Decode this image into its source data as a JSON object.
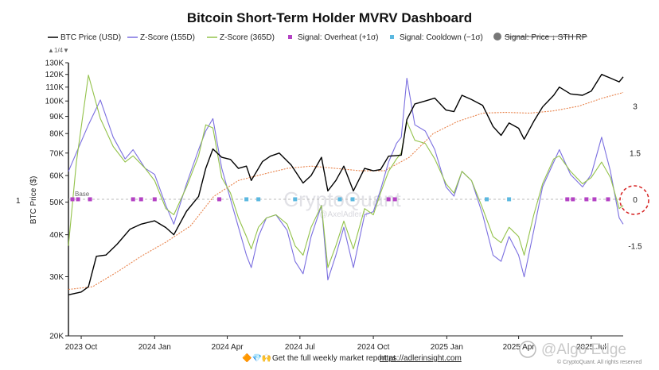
{
  "chart_data": {
    "type": "line",
    "title": "Bitcoin Short-Term Holder MVRV Dashboard",
    "ylabel": "BTC Price ($)",
    "left_axis_side_label": "1",
    "y_scale": "log",
    "ylim": [
      20000,
      130000
    ],
    "y_ticks": [
      20000,
      30000,
      40000,
      50000,
      60000,
      70000,
      80000,
      90000,
      100000,
      110000,
      120000,
      130000
    ],
    "y_tick_labels": [
      "20K",
      "30K",
      "40K",
      "50K",
      "60K",
      "70K",
      "80K",
      "90K",
      "100K",
      "110K",
      "120K",
      "130K"
    ],
    "y2_ticks": [
      -1.5,
      0,
      1.5,
      3
    ],
    "y2_tick_labels": [
      "-1.5",
      "0",
      "1.5",
      "3"
    ],
    "y2lim": [
      -4.4,
      4.4
    ],
    "xlim": [
      "2023-09-15",
      "2025-08-10"
    ],
    "x_ticks": [
      "2023-10-01",
      "2024-01-01",
      "2024-04-01",
      "2024-07-01",
      "2024-10-01",
      "2025-01-01",
      "2025-04-01",
      "2025-07-01"
    ],
    "x_tick_labels": [
      "2023 Oct",
      "2024 Jan",
      "2024 Apr",
      "2024 Jul",
      "2024 Oct",
      "2025 Jan",
      "2025 Apr",
      "2025 Jul"
    ],
    "legend_position": "top",
    "legend_page": "1/4",
    "base_label": "Base",
    "grid": false,
    "series": [
      {
        "name": "BTC Price (USD)",
        "axis": "left",
        "color": "#000000",
        "x": [
          "2023-09-15",
          "2023-10-01",
          "2023-10-10",
          "2023-10-20",
          "2023-11-01",
          "2023-11-15",
          "2023-12-01",
          "2023-12-15",
          "2024-01-01",
          "2024-01-15",
          "2024-01-25",
          "2024-02-10",
          "2024-02-25",
          "2024-03-05",
          "2024-03-14",
          "2024-03-25",
          "2024-04-05",
          "2024-04-15",
          "2024-04-25",
          "2024-05-01",
          "2024-05-15",
          "2024-05-25",
          "2024-06-05",
          "2024-06-20",
          "2024-07-05",
          "2024-07-15",
          "2024-07-28",
          "2024-08-05",
          "2024-08-15",
          "2024-08-25",
          "2024-09-06",
          "2024-09-20",
          "2024-10-01",
          "2024-10-10",
          "2024-10-20",
          "2024-11-05",
          "2024-11-12",
          "2024-11-22",
          "2024-12-05",
          "2024-12-17",
          "2024-12-31",
          "2025-01-10",
          "2025-01-20",
          "2025-02-01",
          "2025-02-15",
          "2025-02-28",
          "2025-03-10",
          "2025-03-20",
          "2025-04-01",
          "2025-04-08",
          "2025-04-20",
          "2025-05-01",
          "2025-05-15",
          "2025-05-22",
          "2025-06-05",
          "2025-06-20",
          "2025-07-01",
          "2025-07-14",
          "2025-07-25",
          "2025-08-05",
          "2025-08-10"
        ],
        "values": [
          26500,
          27000,
          28000,
          34500,
          34800,
          37500,
          41500,
          43000,
          44000,
          42000,
          40000,
          47000,
          52000,
          63000,
          72000,
          68000,
          67000,
          63000,
          64000,
          58000,
          66000,
          68500,
          70000,
          64500,
          57000,
          60000,
          68000,
          54000,
          58000,
          64000,
          54000,
          63000,
          62000,
          62500,
          68500,
          69000,
          88000,
          98000,
          100000,
          102000,
          94000,
          93000,
          104000,
          101000,
          97000,
          84000,
          79000,
          86000,
          83000,
          77000,
          87000,
          96000,
          104000,
          110000,
          105000,
          104000,
          107000,
          120000,
          117000,
          114000,
          118000
        ]
      },
      {
        "name": "Z-Score (155D)",
        "axis": "right",
        "color": "#7b6fe0",
        "x": [
          "2023-09-15",
          "2023-09-25",
          "2023-10-10",
          "2023-10-25",
          "2023-11-10",
          "2023-11-25",
          "2023-12-05",
          "2023-12-20",
          "2024-01-01",
          "2024-01-15",
          "2024-01-25",
          "2024-02-10",
          "2024-02-25",
          "2024-03-05",
          "2024-03-14",
          "2024-03-25",
          "2024-04-05",
          "2024-04-15",
          "2024-04-25",
          "2024-05-01",
          "2024-05-10",
          "2024-05-20",
          "2024-06-01",
          "2024-06-15",
          "2024-06-25",
          "2024-07-05",
          "2024-07-15",
          "2024-07-28",
          "2024-08-05",
          "2024-08-15",
          "2024-08-25",
          "2024-09-06",
          "2024-09-20",
          "2024-10-01",
          "2024-10-10",
          "2024-10-20",
          "2024-10-30",
          "2024-11-05",
          "2024-11-12",
          "2024-11-22",
          "2024-12-05",
          "2024-12-17",
          "2024-12-31",
          "2025-01-10",
          "2025-01-20",
          "2025-02-01",
          "2025-02-15",
          "2025-02-28",
          "2025-03-10",
          "2025-03-20",
          "2025-04-01",
          "2025-04-08",
          "2025-04-20",
          "2025-05-01",
          "2025-05-15",
          "2025-05-22",
          "2025-06-05",
          "2025-06-20",
          "2025-07-01",
          "2025-07-14",
          "2025-07-25",
          "2025-08-05",
          "2025-08-10"
        ],
        "values": [
          0.9,
          1.5,
          2.4,
          3.2,
          2.0,
          1.3,
          1.6,
          1.0,
          0.8,
          -0.2,
          -0.8,
          0.5,
          1.6,
          2.2,
          2.6,
          1.0,
          0.0,
          -0.9,
          -1.8,
          -2.2,
          -1.2,
          -0.6,
          -0.5,
          -1.0,
          -2.0,
          -2.4,
          -1.2,
          -0.2,
          -2.6,
          -1.8,
          -0.9,
          -2.2,
          -0.5,
          -0.4,
          0.3,
          1.2,
          1.8,
          2.0,
          3.9,
          2.4,
          2.2,
          1.6,
          0.4,
          0.1,
          0.9,
          0.6,
          -0.5,
          -1.8,
          -2.0,
          -1.2,
          -1.8,
          -2.5,
          -1.0,
          0.4,
          1.2,
          1.6,
          0.8,
          0.4,
          0.8,
          2.0,
          0.9,
          -0.6,
          -0.8
        ]
      },
      {
        "name": "Z-Score (365D)",
        "axis": "right",
        "color": "#93c24a",
        "x": [
          "2023-09-15",
          "2023-09-25",
          "2023-10-10",
          "2023-10-25",
          "2023-11-10",
          "2023-11-25",
          "2023-12-05",
          "2023-12-20",
          "2024-01-01",
          "2024-01-15",
          "2024-01-25",
          "2024-02-10",
          "2024-02-25",
          "2024-03-05",
          "2024-03-14",
          "2024-03-25",
          "2024-04-05",
          "2024-04-15",
          "2024-04-25",
          "2024-05-01",
          "2024-05-10",
          "2024-05-20",
          "2024-06-01",
          "2024-06-15",
          "2024-06-25",
          "2024-07-05",
          "2024-07-15",
          "2024-07-28",
          "2024-08-05",
          "2024-08-15",
          "2024-08-25",
          "2024-09-06",
          "2024-09-20",
          "2024-10-01",
          "2024-10-10",
          "2024-10-20",
          "2024-10-30",
          "2024-11-05",
          "2024-11-12",
          "2024-11-22",
          "2024-12-05",
          "2024-12-17",
          "2024-12-31",
          "2025-01-10",
          "2025-01-20",
          "2025-02-01",
          "2025-02-15",
          "2025-02-28",
          "2025-03-10",
          "2025-03-20",
          "2025-04-01",
          "2025-04-08",
          "2025-04-20",
          "2025-05-01",
          "2025-05-15",
          "2025-05-22",
          "2025-06-05",
          "2025-06-20",
          "2025-07-01",
          "2025-07-14",
          "2025-07-25",
          "2025-08-05",
          "2025-08-10"
        ],
        "values": [
          -1.5,
          1.2,
          4.0,
          2.6,
          1.7,
          1.2,
          1.4,
          1.0,
          0.6,
          -0.3,
          -0.5,
          0.4,
          1.4,
          2.4,
          2.3,
          0.7,
          0.2,
          -0.6,
          -1.2,
          -1.6,
          -0.9,
          -0.6,
          -0.5,
          -0.8,
          -1.5,
          -1.8,
          -0.9,
          -0.2,
          -2.2,
          -1.5,
          -0.7,
          -1.6,
          -0.3,
          -0.5,
          0.2,
          0.9,
          1.3,
          1.5,
          2.5,
          1.9,
          1.8,
          1.3,
          0.5,
          0.2,
          0.9,
          0.6,
          -0.3,
          -1.2,
          -1.4,
          -0.9,
          -1.2,
          -1.8,
          -0.5,
          0.5,
          1.3,
          1.4,
          0.9,
          0.5,
          0.7,
          1.2,
          0.7,
          -0.3,
          -0.2
        ]
      },
      {
        "name": "STH Realized Price",
        "axis": "left",
        "color": "#e8824a",
        "dashed": true,
        "x": [
          "2023-09-15",
          "2023-10-15",
          "2023-11-15",
          "2023-12-15",
          "2024-01-15",
          "2024-02-15",
          "2024-03-15",
          "2024-04-15",
          "2024-05-15",
          "2024-06-15",
          "2024-07-15",
          "2024-08-15",
          "2024-09-15",
          "2024-10-15",
          "2024-11-15",
          "2024-12-15",
          "2025-01-15",
          "2025-02-15",
          "2025-03-15",
          "2025-04-15",
          "2025-05-15",
          "2025-06-15",
          "2025-07-15",
          "2025-08-10"
        ],
        "values": [
          27500,
          28000,
          31000,
          34500,
          38000,
          42500,
          52000,
          58000,
          60500,
          63000,
          64000,
          63000,
          62000,
          62000,
          68000,
          80000,
          87000,
          92000,
          92500,
          92000,
          93500,
          96500,
          102000,
          106000
        ]
      }
    ],
    "signals": [
      {
        "name": "Signal: Overheat (+1σ)",
        "color": "#b442c4",
        "dates": [
          "2023-09-20",
          "2023-09-27",
          "2023-10-12",
          "2023-12-05",
          "2023-12-15",
          "2024-01-01",
          "2024-03-22",
          "2024-10-20",
          "2024-10-28",
          "2025-06-01",
          "2025-06-08",
          "2025-06-25",
          "2025-07-05",
          "2025-07-22"
        ]
      },
      {
        "name": "Signal: Cooldown (−1σ)",
        "color": "#5bb8e0",
        "dates": [
          "2024-04-25",
          "2024-05-10",
          "2024-06-25",
          "2024-08-20",
          "2024-09-05",
          "2025-02-20",
          "2025-03-20"
        ]
      }
    ],
    "hidden_series_label": "Signal: Price ↓ STH RP",
    "annotations": [
      "circle at Z-Score 0 on right axis"
    ]
  },
  "watermark": {
    "brand": "CryptoQuant",
    "handle": "@AxelAdlerJr",
    "corner_text": "@Algo Edge",
    "credit": "© CryptoQuant. All rights reserved"
  },
  "footer": {
    "text": "Get the full weekly market report at",
    "link": "https://adlerinsight.com",
    "emoji": "🔶💎🙌"
  }
}
